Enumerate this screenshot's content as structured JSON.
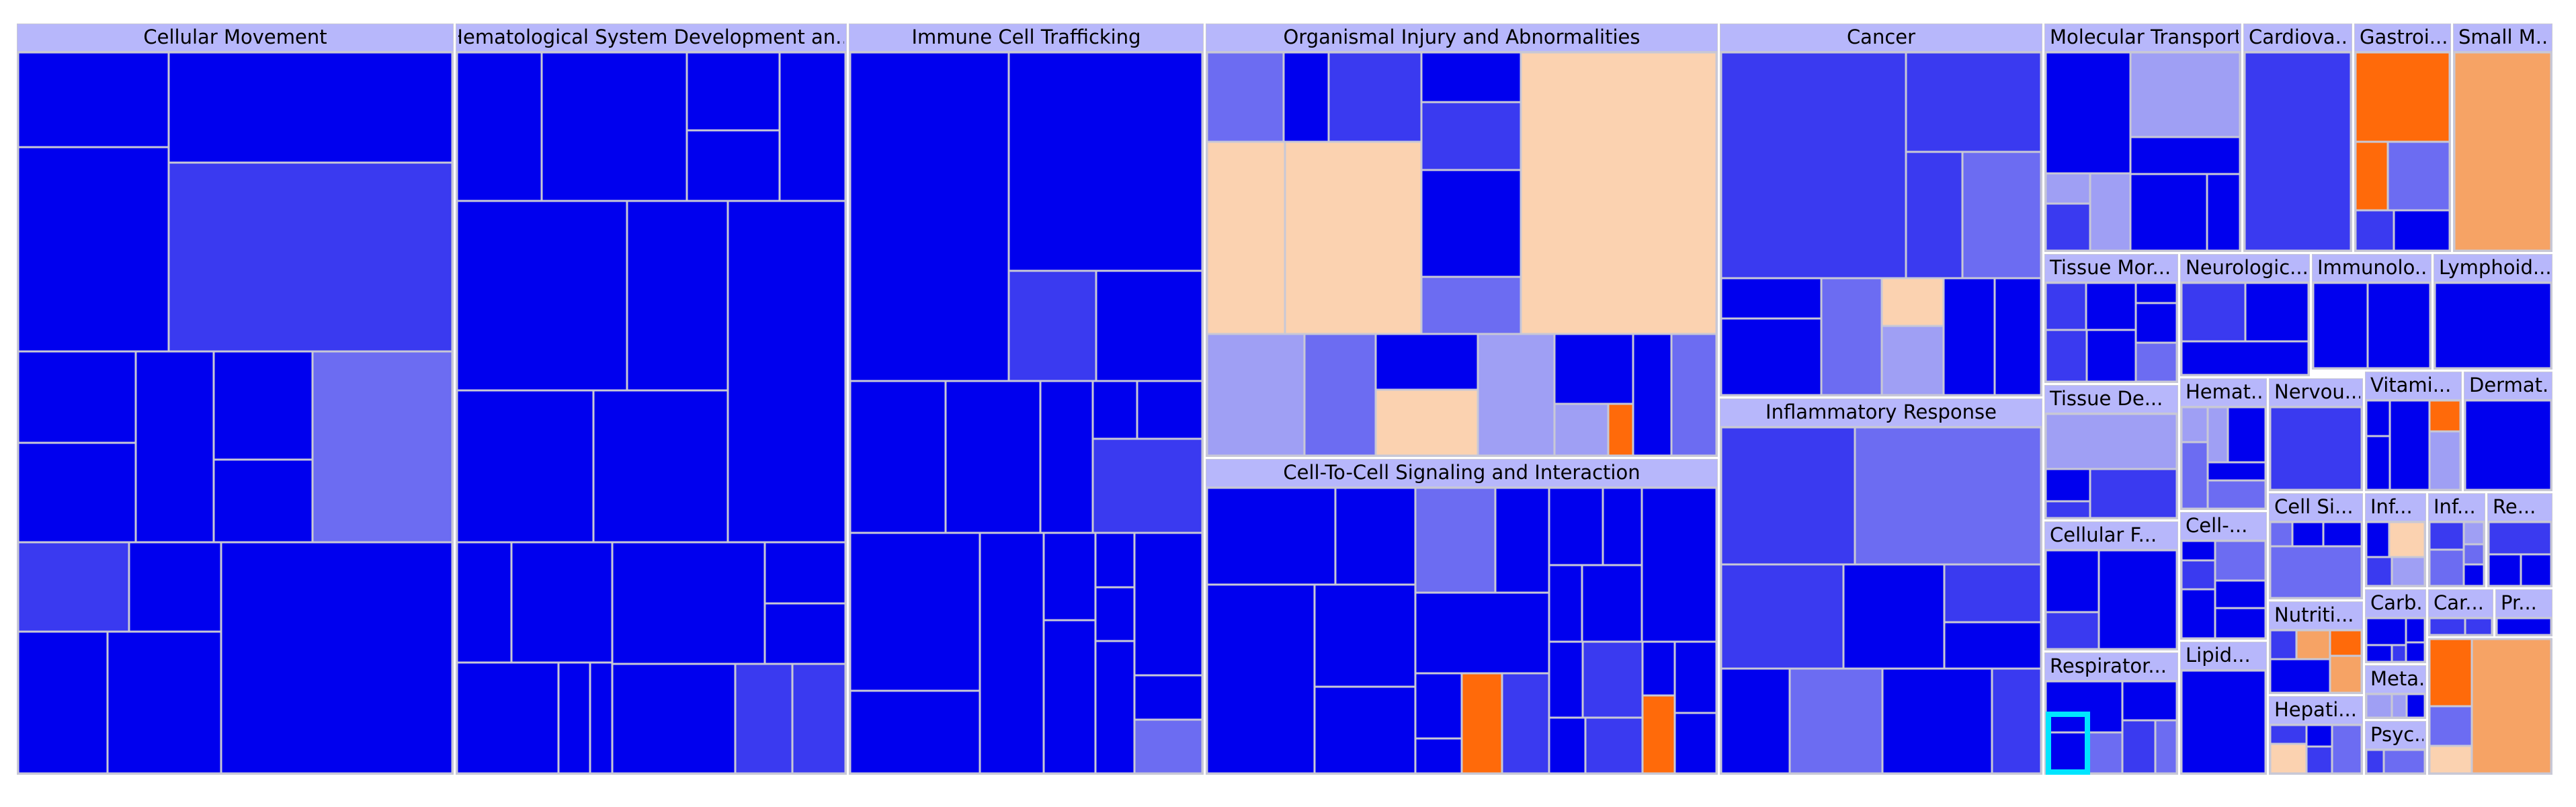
{
  "colors": {
    "strong_blue": "#0000ee",
    "mid_blue": "#3a3af0",
    "light_blue": "#6c6cf2",
    "pale_blue": "#9f9ff4",
    "grey_blue": "#c4c4e8",
    "orange": "#ff6a0a",
    "light_orange": "#f6a365",
    "peach": "#fbd2b0",
    "header": "#b7b7fb",
    "border": "#c8c8d6",
    "selection": "#00e5ff"
  },
  "chart_data": {
    "type": "treemap",
    "color_scale": "blue = predicted decrease, orange = predicted increase",
    "categories": [
      {
        "label": "Cellular Movement",
        "mix": [
          70,
          25,
          5,
          0
        ]
      },
      {
        "label": "Hematological System Development an...",
        "mix": [
          62,
          30,
          8,
          0
        ]
      },
      {
        "label": "Immune Cell Trafficking",
        "mix": [
          72,
          22,
          6,
          0
        ]
      },
      {
        "label": "Organismal Injury and Abnormalities",
        "mix": [
          18,
          30,
          37,
          15
        ]
      },
      {
        "label": "Cell-To-Cell Signaling and Interaction",
        "mix": [
          72,
          20,
          3,
          5
        ]
      },
      {
        "label": "Cancer",
        "mix": [
          20,
          30,
          42,
          8
        ]
      },
      {
        "label": "Inflammatory Response",
        "mix": [
          48,
          28,
          14,
          10
        ]
      },
      {
        "label": "Molecular Transport",
        "mix": [
          40,
          30,
          15,
          15
        ]
      },
      {
        "label": "Cardiova...",
        "mix": [
          10,
          20,
          30,
          40
        ]
      },
      {
        "label": "Gastroi...",
        "mix": [
          10,
          20,
          35,
          35
        ]
      },
      {
        "label": "Small M...",
        "mix": [
          8,
          17,
          35,
          40
        ]
      },
      {
        "label": "Tissue Mor...",
        "mix": [
          35,
          40,
          25,
          0
        ]
      },
      {
        "label": "Neurologic...",
        "mix": [
          30,
          35,
          25,
          10
        ]
      },
      {
        "label": "Immunolo...",
        "mix": [
          15,
          35,
          30,
          20
        ]
      },
      {
        "label": "Lymphoid...",
        "mix": [
          55,
          30,
          15,
          0
        ]
      },
      {
        "label": "Tissue De...",
        "mix": [
          30,
          40,
          30,
          0
        ]
      },
      {
        "label": "Hemat...",
        "mix": [
          15,
          35,
          50,
          0
        ]
      },
      {
        "label": "Nervou...",
        "mix": [
          25,
          35,
          25,
          15
        ]
      },
      {
        "label": "Vitami...",
        "mix": [
          25,
          35,
          25,
          15
        ]
      },
      {
        "label": "Dermat...",
        "mix": [
          30,
          40,
          25,
          5
        ]
      },
      {
        "label": "Cellular F...",
        "mix": [
          55,
          35,
          10,
          0
        ]
      },
      {
        "label": "Cell-...",
        "mix": [
          55,
          35,
          10,
          0
        ]
      },
      {
        "label": "Cell Si...",
        "mix": [
          30,
          40,
          30,
          0
        ]
      },
      {
        "label": "Inf...",
        "mix": [
          10,
          30,
          20,
          40
        ]
      },
      {
        "label": "Inf...",
        "mix": [
          25,
          40,
          35,
          0
        ]
      },
      {
        "label": "Re...",
        "mix": [
          20,
          45,
          35,
          0
        ]
      },
      {
        "label": "Carb...",
        "mix": [
          10,
          40,
          50,
          0
        ]
      },
      {
        "label": "Car...",
        "mix": [
          40,
          40,
          20,
          0
        ]
      },
      {
        "label": "Pr...",
        "mix": [
          40,
          40,
          20,
          0
        ]
      },
      {
        "label": "Nutriti...",
        "mix": [
          15,
          25,
          20,
          40
        ]
      },
      {
        "label": "Meta...",
        "mix": [
          15,
          35,
          50,
          0
        ]
      },
      {
        "label": "Hepati...",
        "mix": [
          20,
          35,
          25,
          20
        ]
      },
      {
        "label": "Psyc...",
        "mix": [
          10,
          35,
          45,
          10
        ]
      },
      {
        "label": "Respirator...",
        "mix": [
          35,
          40,
          25,
          0
        ]
      },
      {
        "label": "Lipid...",
        "mix": [
          10,
          25,
          25,
          40
        ]
      },
      {
        "label": "",
        "mix": [
          5,
          25,
          40,
          30
        ]
      }
    ]
  }
}
